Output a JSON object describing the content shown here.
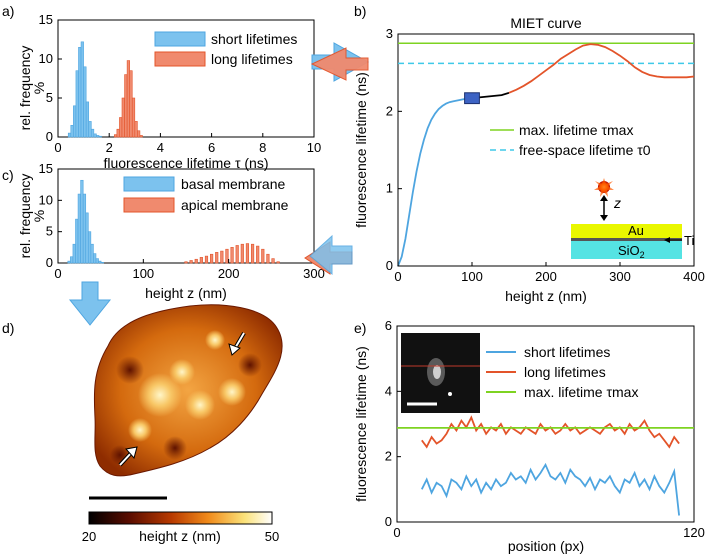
{
  "panels": {
    "a": "a)",
    "b": "b)",
    "c": "c)",
    "d": "d)",
    "e": "e)"
  },
  "colors": {
    "blue": "#4ea5e0",
    "blue_fill": "#7cc2ee",
    "red": "#e3542a",
    "red_fill": "#f08a6e",
    "green": "#7ed321",
    "cyan": "#3ec9e8",
    "gold": "#e9f700",
    "silica": "#55e3e3",
    "arrow": "#7cc2ee"
  },
  "chart_data": [
    {
      "id": "a",
      "type": "bar",
      "xlabel": "fluorescence lifetime τ (ns)",
      "ylabel": "rel. frequency",
      "ylabel_unit": "%",
      "xlim": [
        0,
        10
      ],
      "ylim": [
        0,
        15
      ],
      "xticks": [
        "0",
        "2",
        "4",
        "6",
        "8",
        "10"
      ],
      "yticks": [
        "0",
        "5",
        "10",
        "15"
      ],
      "legend": [
        "short lifetimes",
        "long lifetimes"
      ],
      "series": [
        {
          "name": "short lifetimes",
          "color": "#4ea5e0",
          "x": [
            0.45,
            0.55,
            0.65,
            0.75,
            0.85,
            0.95,
            1.05,
            1.15,
            1.25,
            1.35,
            1.45,
            1.55,
            1.65
          ],
          "values": [
            0.5,
            1.5,
            4,
            8.5,
            11.5,
            12.2,
            9,
            4.5,
            2,
            1,
            0.4,
            0.2,
            0.1
          ]
        },
        {
          "name": "long lifetimes",
          "color": "#e3542a",
          "x": [
            2.25,
            2.35,
            2.45,
            2.55,
            2.65,
            2.75,
            2.85,
            2.95,
            3.05,
            3.15,
            3.25
          ],
          "values": [
            0.3,
            1,
            2.5,
            5,
            8,
            9.8,
            8.5,
            5,
            2,
            0.8,
            0.2
          ]
        }
      ]
    },
    {
      "id": "c",
      "type": "bar",
      "xlabel": "height z (nm)",
      "ylabel": "rel. frequency",
      "ylabel_unit": "%",
      "xlim": [
        0,
        300
      ],
      "ylim": [
        0,
        15
      ],
      "xticks": [
        "0",
        "100",
        "200",
        "300"
      ],
      "yticks": [
        "0",
        "5",
        "10",
        "15"
      ],
      "legend": [
        "basal membrane",
        "apical membrane"
      ],
      "series": [
        {
          "name": "basal membrane",
          "color": "#4ea5e0",
          "x": [
            13,
            16,
            19,
            22,
            25,
            28,
            31,
            34,
            37,
            40,
            43,
            46,
            49,
            52
          ],
          "values": [
            0.3,
            1,
            3,
            7,
            11,
            13.2,
            11,
            8,
            5,
            3,
            1.5,
            0.7,
            0.3,
            0.1
          ]
        },
        {
          "name": "apical membrane",
          "color": "#e3542a",
          "x": [
            150,
            156,
            162,
            168,
            174,
            180,
            186,
            192,
            198,
            204,
            210,
            216,
            222,
            228,
            234,
            240,
            246,
            252,
            258
          ],
          "values": [
            0.2,
            0.4,
            0.6,
            0.9,
            1.1,
            1.4,
            1.7,
            1.9,
            2.2,
            2.5,
            2.8,
            3,
            3.1,
            3,
            2.7,
            2.2,
            1.4,
            0.7,
            0.2
          ]
        }
      ]
    },
    {
      "id": "b",
      "type": "line",
      "title": "MIET curve",
      "xlabel": "height z (nm)",
      "ylabel": "fluorescence lifetime (ns)",
      "xlim": [
        0,
        400
      ],
      "ylim": [
        0,
        3
      ],
      "xticks": [
        "0",
        "100",
        "200",
        "300",
        "400"
      ],
      "yticks": [
        "0",
        "1",
        "2",
        "3"
      ],
      "legend": [
        "max. lifetime τmax",
        "free-space lifetime τ0"
      ],
      "tau_max": 2.88,
      "tau_0": 2.62,
      "highlight_box": {
        "x": [
          90,
          110
        ],
        "y": [
          2.1,
          2.24
        ]
      },
      "series": [
        {
          "name": "MIET curve (blue part)",
          "color": "#4ea5e0",
          "x": [
            0,
            5,
            10,
            15,
            20,
            25,
            30,
            35,
            40,
            45,
            50,
            55,
            60,
            65,
            70,
            75,
            80,
            85,
            90
          ],
          "y": [
            0,
            0.12,
            0.35,
            0.65,
            0.95,
            1.22,
            1.45,
            1.63,
            1.78,
            1.89,
            1.97,
            2.03,
            2.07,
            2.1,
            2.12,
            2.13,
            2.14,
            2.15,
            2.16
          ]
        },
        {
          "name": "MIET curve (black part)",
          "color": "#000000",
          "x": [
            90,
            100,
            110,
            120,
            130,
            140,
            150
          ],
          "y": [
            2.16,
            2.17,
            2.18,
            2.19,
            2.2,
            2.21,
            2.24
          ]
        },
        {
          "name": "MIET curve (red part)",
          "color": "#e3542a",
          "x": [
            150,
            160,
            170,
            180,
            190,
            200,
            210,
            220,
            230,
            240,
            250,
            260,
            270,
            280,
            290,
            300,
            310,
            320,
            330,
            340,
            350,
            360,
            370,
            380,
            390,
            400
          ],
          "y": [
            2.24,
            2.28,
            2.33,
            2.39,
            2.46,
            2.53,
            2.6,
            2.68,
            2.74,
            2.8,
            2.85,
            2.87,
            2.86,
            2.83,
            2.78,
            2.72,
            2.65,
            2.57,
            2.51,
            2.47,
            2.45,
            2.44,
            2.44,
            2.44,
            2.44,
            2.45
          ]
        }
      ],
      "inset_labels": {
        "z": "z",
        "au": "Au",
        "ti": "Ti",
        "sio2_main": "SiO",
        "sio2_sub": "2"
      }
    },
    {
      "id": "e",
      "type": "line",
      "xlabel": "position (px)",
      "ylabel": "fluorescence lifetime (ns)",
      "xlim": [
        0,
        120
      ],
      "ylim": [
        0,
        6
      ],
      "xticks": [
        "0",
        "120"
      ],
      "yticks": [
        "0",
        "2",
        "4",
        "6"
      ],
      "legend": [
        "short lifetimes",
        "long lifetimes",
        "max. lifetime τmax"
      ],
      "tau_max": 2.88,
      "series": [
        {
          "name": "short lifetimes",
          "color": "#4ea5e0",
          "x": [
            10,
            12,
            14,
            16,
            18,
            20,
            22,
            24,
            26,
            28,
            30,
            32,
            34,
            36,
            38,
            40,
            42,
            44,
            46,
            48,
            50,
            52,
            54,
            56,
            58,
            60,
            62,
            64,
            66,
            68,
            70,
            72,
            74,
            76,
            78,
            80,
            82,
            84,
            86,
            88,
            90,
            92,
            94,
            96,
            98,
            100,
            102,
            104,
            106,
            108,
            110,
            112,
            114
          ],
          "y": [
            1.0,
            1.3,
            0.9,
            1.2,
            1.1,
            0.8,
            1.3,
            1.2,
            1.0,
            1.4,
            1.1,
            1.3,
            0.9,
            1.2,
            1.0,
            1.3,
            1.1,
            1.2,
            1.5,
            1.3,
            1.4,
            1.2,
            1.6,
            1.3,
            1.5,
            1.75,
            1.4,
            1.3,
            1.5,
            1.2,
            1.6,
            1.4,
            1.3,
            1.1,
            1.35,
            1.0,
            1.3,
            1.2,
            1.4,
            1.1,
            0.9,
            1.3,
            1.2,
            1.5,
            1.1,
            1.3,
            1.0,
            1.4,
            1.1,
            0.9,
            1.2,
            1.55,
            0.2
          ]
        },
        {
          "name": "long lifetimes",
          "color": "#e3542a",
          "x": [
            10,
            12,
            14,
            16,
            18,
            20,
            22,
            24,
            26,
            28,
            30,
            32,
            34,
            36,
            38,
            40,
            42,
            44,
            46,
            48,
            50,
            52,
            54,
            56,
            58,
            60,
            62,
            64,
            66,
            68,
            70,
            72,
            74,
            76,
            78,
            80,
            82,
            84,
            86,
            88,
            90,
            92,
            94,
            96,
            98,
            100,
            102,
            104,
            106,
            108,
            110,
            112,
            114
          ],
          "y": [
            2.5,
            2.3,
            2.6,
            2.4,
            2.5,
            2.7,
            3.0,
            2.8,
            3.1,
            2.9,
            3.2,
            2.8,
            3.0,
            2.7,
            2.9,
            2.8,
            3.0,
            2.7,
            2.9,
            2.8,
            2.7,
            2.9,
            2.8,
            2.7,
            3.0,
            2.8,
            2.9,
            2.7,
            2.8,
            3.0,
            2.8,
            2.9,
            2.7,
            2.8,
            2.9,
            2.8,
            2.7,
            2.9,
            3.0,
            2.8,
            2.9,
            2.7,
            3.0,
            2.8,
            2.9,
            3.1,
            2.8,
            2.6,
            2.7,
            2.5,
            2.3,
            2.6,
            2.4
          ]
        },
        {
          "name": "max. lifetime τmax",
          "color": "#7ed321",
          "x": [
            0,
            120
          ],
          "y": [
            2.88,
            2.88
          ]
        }
      ]
    },
    {
      "id": "d",
      "type": "heatmap",
      "colorbar_label": "height z (nm)",
      "colorbar_ticks": [
        "20",
        "50"
      ],
      "clim": [
        20,
        50
      ]
    }
  ]
}
